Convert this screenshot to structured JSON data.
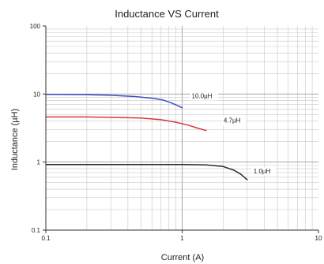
{
  "chart_data": {
    "type": "line",
    "title": "Inductance VS Current",
    "xlabel": "Current (A)",
    "ylabel": "Inductance (µH)",
    "xscale": "log",
    "yscale": "log",
    "xlim": [
      0.1,
      10
    ],
    "ylim": [
      0.1,
      100
    ],
    "grid": true,
    "x_ticks": [
      {
        "value": 0.1,
        "label": "0.1"
      },
      {
        "value": 1,
        "label": "1"
      },
      {
        "value": 10,
        "label": "10"
      }
    ],
    "y_ticks": [
      {
        "value": 100,
        "label": "100"
      },
      {
        "value": 10,
        "label": "10"
      },
      {
        "value": 1,
        "label": "1"
      },
      {
        "value": 0.1,
        "label": "0.1"
      }
    ],
    "series": [
      {
        "name": "10.0µH",
        "color": "#3b4fc4",
        "x": [
          0.1,
          0.2,
          0.3,
          0.45,
          0.6,
          0.72,
          0.82,
          0.92,
          1.0
        ],
        "y": [
          9.9,
          9.8,
          9.6,
          9.2,
          8.7,
          8.2,
          7.5,
          6.8,
          6.3
        ]
      },
      {
        "name": "4.7µH",
        "color": "#d63a3a",
        "x": [
          0.1,
          0.2,
          0.3,
          0.5,
          0.7,
          0.9,
          1.1,
          1.3,
          1.5
        ],
        "y": [
          4.6,
          4.6,
          4.55,
          4.45,
          4.2,
          3.85,
          3.5,
          3.15,
          2.9
        ]
      },
      {
        "name": "1.0µH",
        "color": "#2a2a2a",
        "x": [
          0.1,
          0.5,
          1.0,
          1.5,
          2.0,
          2.4,
          2.7,
          3.0
        ],
        "y": [
          0.92,
          0.92,
          0.92,
          0.91,
          0.86,
          0.76,
          0.66,
          0.55
        ]
      }
    ]
  }
}
